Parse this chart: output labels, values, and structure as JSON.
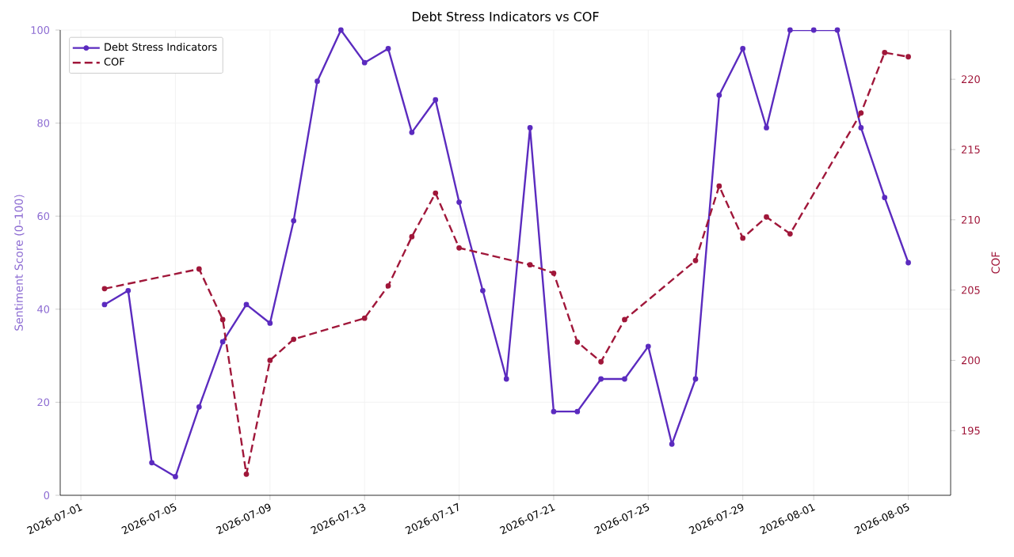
{
  "chart_data": {
    "type": "line",
    "title": "Debt Stress Indicators vs COF",
    "ylabel": "Sentiment Score (0–100)",
    "y2label": "COF",
    "x": [
      "2026-07-02",
      "2026-07-03",
      "2026-07-04",
      "2026-07-05",
      "2026-07-06",
      "2026-07-07",
      "2026-07-08",
      "2026-07-09",
      "2026-07-10",
      "2026-07-11",
      "2026-07-12",
      "2026-07-13",
      "2026-07-14",
      "2026-07-15",
      "2026-07-16",
      "2026-07-17",
      "2026-07-18",
      "2026-07-19",
      "2026-07-20",
      "2026-07-21",
      "2026-07-22",
      "2026-07-23",
      "2026-07-24",
      "2026-07-25",
      "2026-07-26",
      "2026-07-27",
      "2026-07-28",
      "2026-07-29",
      "2026-07-30",
      "2026-07-31",
      "2026-08-01",
      "2026-08-02",
      "2026-08-03",
      "2026-08-04",
      "2026-08-05"
    ],
    "series": [
      {
        "name": "Debt Stress Indicators",
        "color": "#5b2bbf",
        "line_style": "solid",
        "values": [
          41,
          44,
          7,
          4,
          19,
          33,
          41,
          37,
          59,
          89,
          100,
          93,
          96,
          78,
          85,
          63,
          44,
          25,
          79,
          18,
          18,
          25,
          25,
          32,
          11,
          25,
          86,
          96,
          79,
          100,
          100,
          100,
          79,
          64,
          50
        ]
      },
      {
        "name": "COF",
        "color": "#a0173a",
        "axis": "y2",
        "line_style": "dashed",
        "x": [
          "2026-07-02",
          "2026-07-06",
          "2026-07-07",
          "2026-07-08",
          "2026-07-09",
          "2026-07-10",
          "2026-07-13",
          "2026-07-14",
          "2026-07-15",
          "2026-07-16",
          "2026-07-17",
          "2026-07-20",
          "2026-07-21",
          "2026-07-22",
          "2026-07-23",
          "2026-07-24",
          "2026-07-27",
          "2026-07-28",
          "2026-07-29",
          "2026-07-30",
          "2026-07-31",
          "2026-08-03",
          "2026-08-04",
          "2026-08-05"
        ],
        "values": [
          205.1,
          206.5,
          202.9,
          191.9,
          200.0,
          201.5,
          203.0,
          205.3,
          208.8,
          211.9,
          208.0,
          206.8,
          206.2,
          201.3,
          199.9,
          202.9,
          207.1,
          212.4,
          208.7,
          210.2,
          209.0,
          217.6,
          221.9,
          221.6
        ]
      }
    ],
    "xlim": [
      "2026-06-30T03:00",
      "2026-08-06T19:00"
    ],
    "xticks": [
      "2026-07-01",
      "2026-07-05",
      "2026-07-09",
      "2026-07-13",
      "2026-07-17",
      "2026-07-21",
      "2026-07-25",
      "2026-07-29",
      "2026-08-01",
      "2026-08-05"
    ],
    "ylim": [
      0,
      100
    ],
    "yticks": [
      0,
      20,
      40,
      60,
      80,
      100
    ],
    "y2lim": [
      190.4,
      223.5
    ],
    "y2ticks": [
      195,
      200,
      205,
      210,
      215,
      220
    ],
    "grid": true,
    "legend": "top left",
    "marker": "circle"
  }
}
